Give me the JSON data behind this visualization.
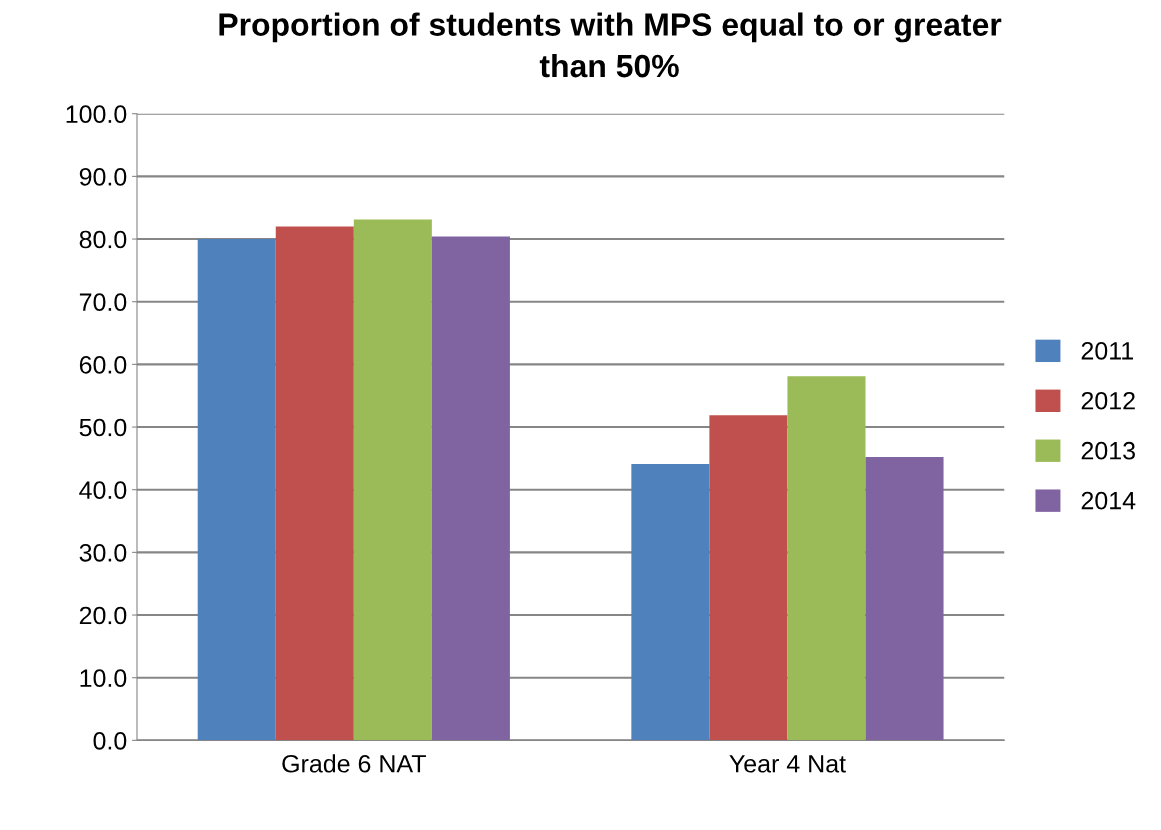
{
  "chart_data": {
    "type": "bar",
    "title": "Proportion of students with MPS equal to or greater\nthan 50%",
    "categories": [
      "Grade 6 NAT",
      "Year 4 Nat"
    ],
    "series": [
      {
        "name": "2011",
        "color": "#4f81bd",
        "values": [
          80.0,
          44.1
        ]
      },
      {
        "name": "2012",
        "color": "#c0504d",
        "values": [
          82.0,
          51.9
        ]
      },
      {
        "name": "2013",
        "color": "#9bbb59",
        "values": [
          83.1,
          58.1
        ]
      },
      {
        "name": "2014",
        "color": "#8064a2",
        "values": [
          80.4,
          45.2
        ]
      }
    ],
    "ylim": [
      0,
      100
    ],
    "yticks": [
      {
        "value": 0,
        "label": "0.0"
      },
      {
        "value": 10,
        "label": "10.0"
      },
      {
        "value": 20,
        "label": "20.0"
      },
      {
        "value": 30,
        "label": "30.0"
      },
      {
        "value": 40,
        "label": "40.0"
      },
      {
        "value": 50,
        "label": "50.0"
      },
      {
        "value": 60,
        "label": "60.0"
      },
      {
        "value": 70,
        "label": "70.0"
      },
      {
        "value": 80,
        "label": "80.0"
      },
      {
        "value": 90,
        "label": "90.0"
      },
      {
        "value": 100,
        "label": "100.0"
      }
    ],
    "grid": "y",
    "legend": "right"
  }
}
